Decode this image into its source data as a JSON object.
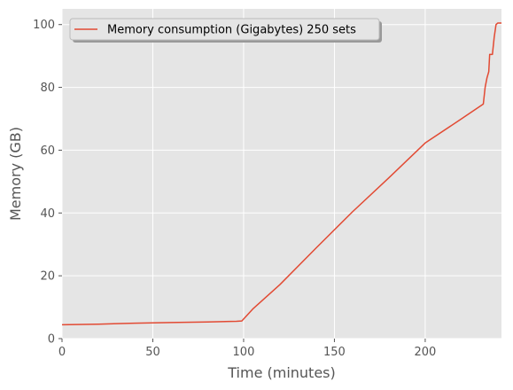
{
  "chart_data": {
    "type": "line",
    "xlabel": "Time (minutes)",
    "ylabel": "Memory (GB)",
    "xlim": [
      0,
      242
    ],
    "ylim": [
      0,
      105
    ],
    "xticks": [
      0,
      50,
      100,
      150,
      200
    ],
    "yticks": [
      0,
      20,
      40,
      60,
      80,
      100
    ],
    "grid": true,
    "legend_position": "top-left",
    "series": [
      {
        "name": "Memory consumption (Gigabytes) 250 sets",
        "color": "#E24A33",
        "x": [
          0,
          20,
          40,
          60,
          80,
          96,
          99,
          105,
          120,
          140,
          160,
          180,
          200,
          220,
          232,
          233,
          234,
          235,
          235.5,
          236,
          236.5,
          237,
          238,
          239,
          240,
          241,
          242
        ],
        "y": [
          4.4,
          4.6,
          4.9,
          5.1,
          5.3,
          5.5,
          5.6,
          9.4,
          17.2,
          28.9,
          40.4,
          51.2,
          62.3,
          70.0,
          74.7,
          80.0,
          83.0,
          85.0,
          90.5,
          90.5,
          90.5,
          90.5,
          96.0,
          100.0,
          100.5,
          100.5,
          100.5
        ]
      }
    ]
  }
}
